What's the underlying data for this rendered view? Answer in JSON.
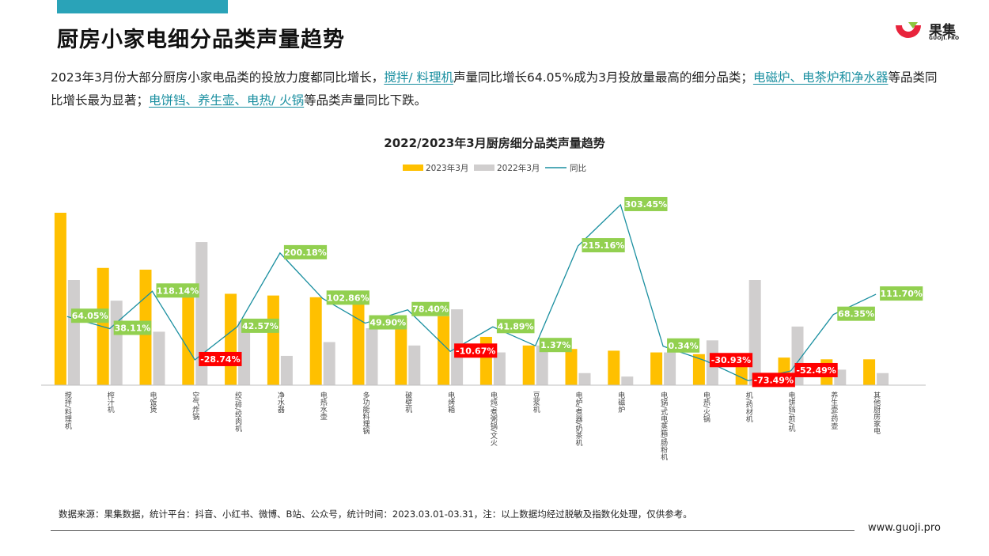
{
  "page": {
    "title": "厨房小家电细分品类声量趋势",
    "logo_name": "果集",
    "logo_domain": "GUOJI.PRO",
    "desc_parts": [
      {
        "t": "2023年3月份大部分厨房小家电品类的投放力度都同比增长，",
        "hl": false
      },
      {
        "t": "搅拌/ 料理机",
        "hl": true
      },
      {
        "t": "声量同比增长64.05%成为3月投放量最高的细分品类；",
        "hl": false
      },
      {
        "t": "电磁炉、电茶炉和净水器",
        "hl": true
      },
      {
        "t": "等品类同比增长最为显著；",
        "hl": false
      },
      {
        "t": "电饼铛、养生壶、电热/ 火锅",
        "hl": true
      },
      {
        "t": "等品类声量同比下跌。",
        "hl": false
      }
    ],
    "footnote": "数据来源：果集数据，统计平台：抖音、小红书、微博、B站、公众号，统计时间：2023.03.01-03.31，注：以上数据均经过脱敏及指数化处理，仅供参考。",
    "website": "www.guoji.pro",
    "colors": {
      "brand": "#2aa3b8",
      "bar2023": "#ffc000",
      "bar2022": "#d0cece",
      "line": "#1a8fa0",
      "pos": "#92d050",
      "neg": "#ff0000"
    }
  },
  "chart_data": {
    "type": "bar",
    "title": "2022/2023年3月厨房细分品类声量趋势",
    "legend_position": "top",
    "categories": [
      "搅拌/料理机",
      "榨汁机",
      "电饭煲",
      "空气炸锅",
      "绞/碎/绞肉机",
      "净水器",
      "电热水壶",
      "多功能料理锅",
      "破壁机",
      "电烤箱",
      "电炖/煮粥锅/文火",
      "豆浆机",
      "电炉/煮器/奶茶机",
      "电磁炉",
      "电锅/式电蒸箱/肠粉机",
      "电热/火锅",
      "机/药材机",
      "电饼铛/煎/机",
      "养生壶/药壶",
      "其他厨房家电"
    ],
    "series": [
      {
        "name": "2023年3月",
        "type": "bar",
        "values": [
          100,
          68,
          67,
          57,
          53,
          52,
          51,
          47,
          39,
          40,
          28,
          23,
          21,
          20,
          19,
          18,
          14,
          16,
          15,
          15
        ]
      },
      {
        "name": "2022年3月",
        "type": "bar",
        "values": [
          61,
          49,
          31,
          83,
          37,
          17,
          25,
          33,
          23,
          44,
          19,
          23,
          7,
          5,
          19,
          26,
          61,
          34,
          9,
          7
        ]
      },
      {
        "name": "同比",
        "type": "line",
        "unit": "%",
        "values": [
          64.05,
          38.11,
          118.14,
          -28.74,
          42.57,
          200.18,
          102.86,
          49.9,
          78.4,
          -10.67,
          41.89,
          1.37,
          215.16,
          303.45,
          0.34,
          -30.93,
          -73.49,
          -52.49,
          68.35,
          111.7
        ]
      }
    ],
    "data_labels": [
      "64.05%",
      "38.11%",
      "118.14%",
      "-28.74%",
      "42.57%",
      "200.18%",
      "102.86%",
      "49.90%",
      "78.40%",
      "-10.67%",
      "41.89%",
      "1.37%",
      "215.16%",
      "303.45%",
      "0.34%",
      "-30.93%",
      "-73.49%",
      "-52.49%",
      "68.35%",
      "111.70%"
    ]
  }
}
